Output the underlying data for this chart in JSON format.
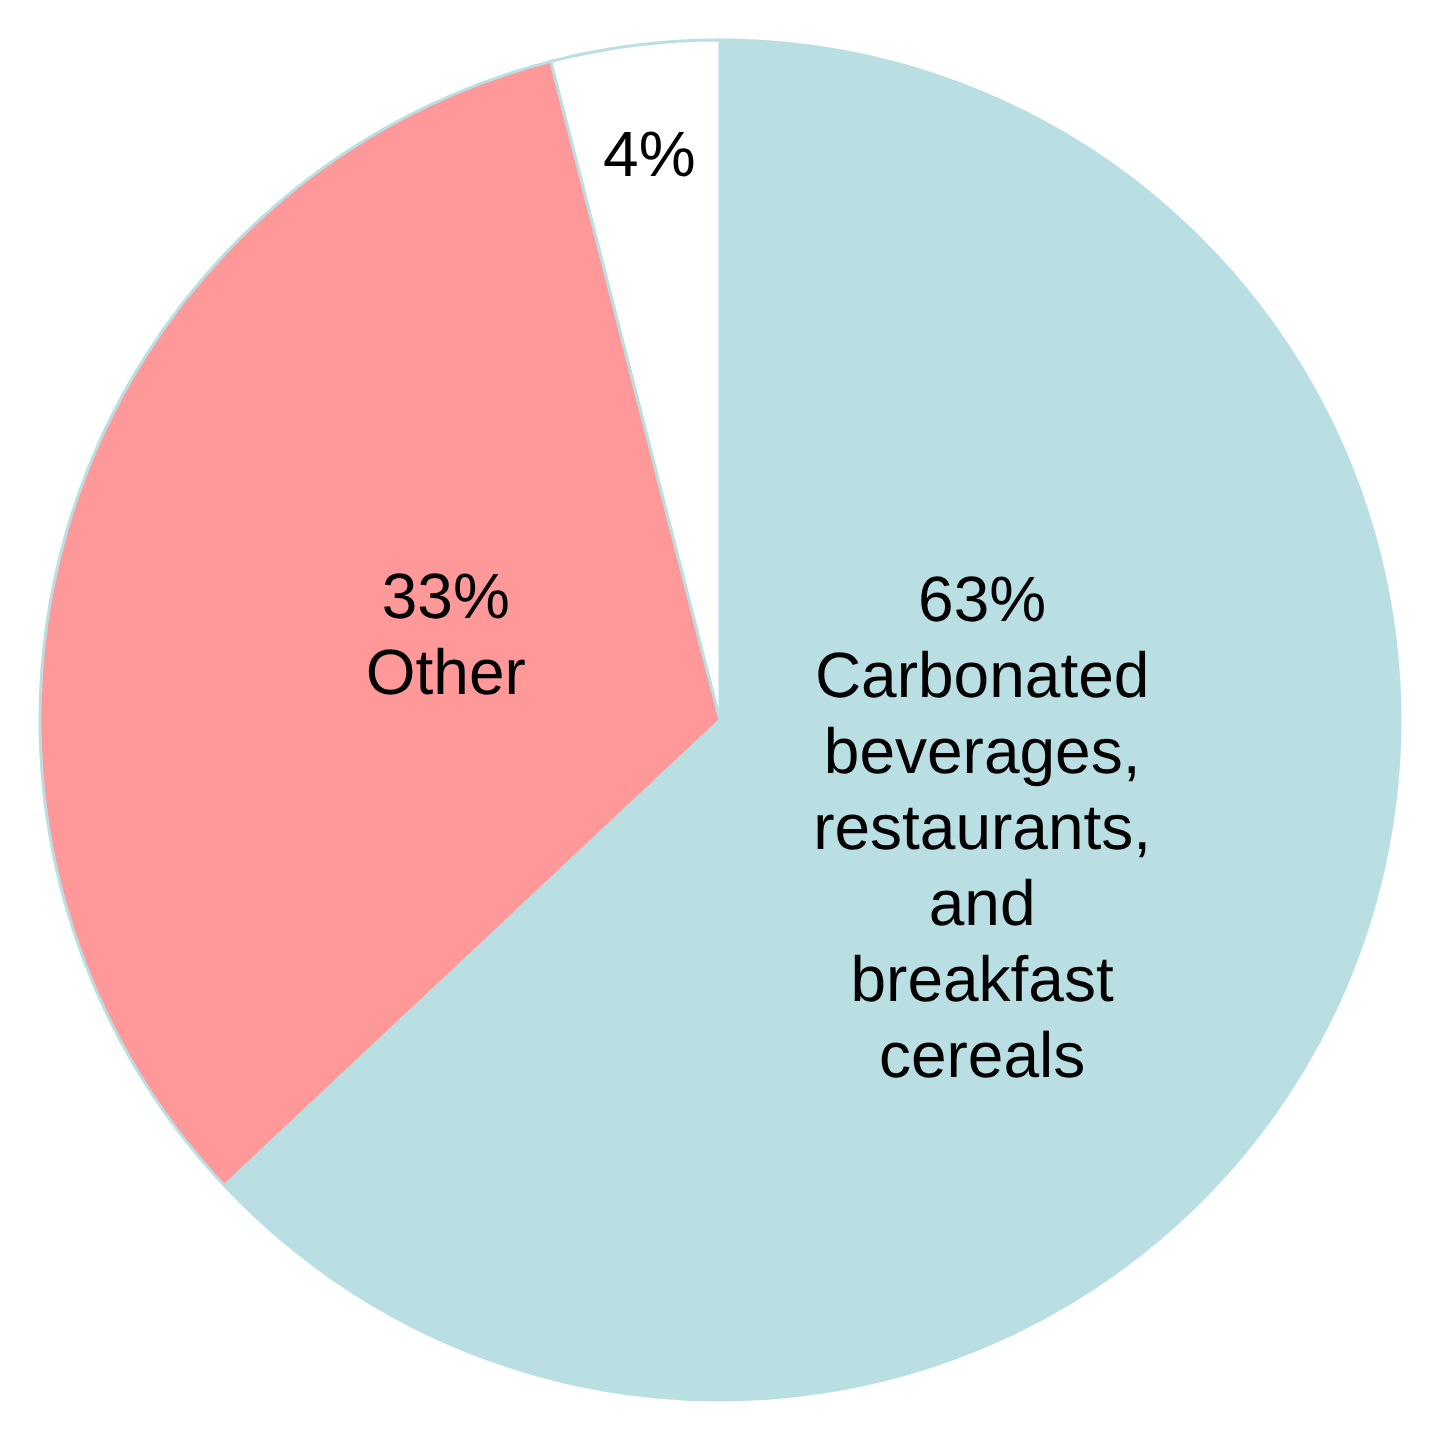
{
  "chart_data": {
    "type": "pie",
    "categories": [
      "Carbonated beverages, restaurants, and breakfast cereals",
      "Other",
      null
    ],
    "values": [
      63,
      33,
      4
    ],
    "value_labels": [
      "63%",
      "33%",
      "4%"
    ],
    "colors": [
      "#b9dfe3",
      "#ff9999",
      "#ffffff"
    ]
  }
}
